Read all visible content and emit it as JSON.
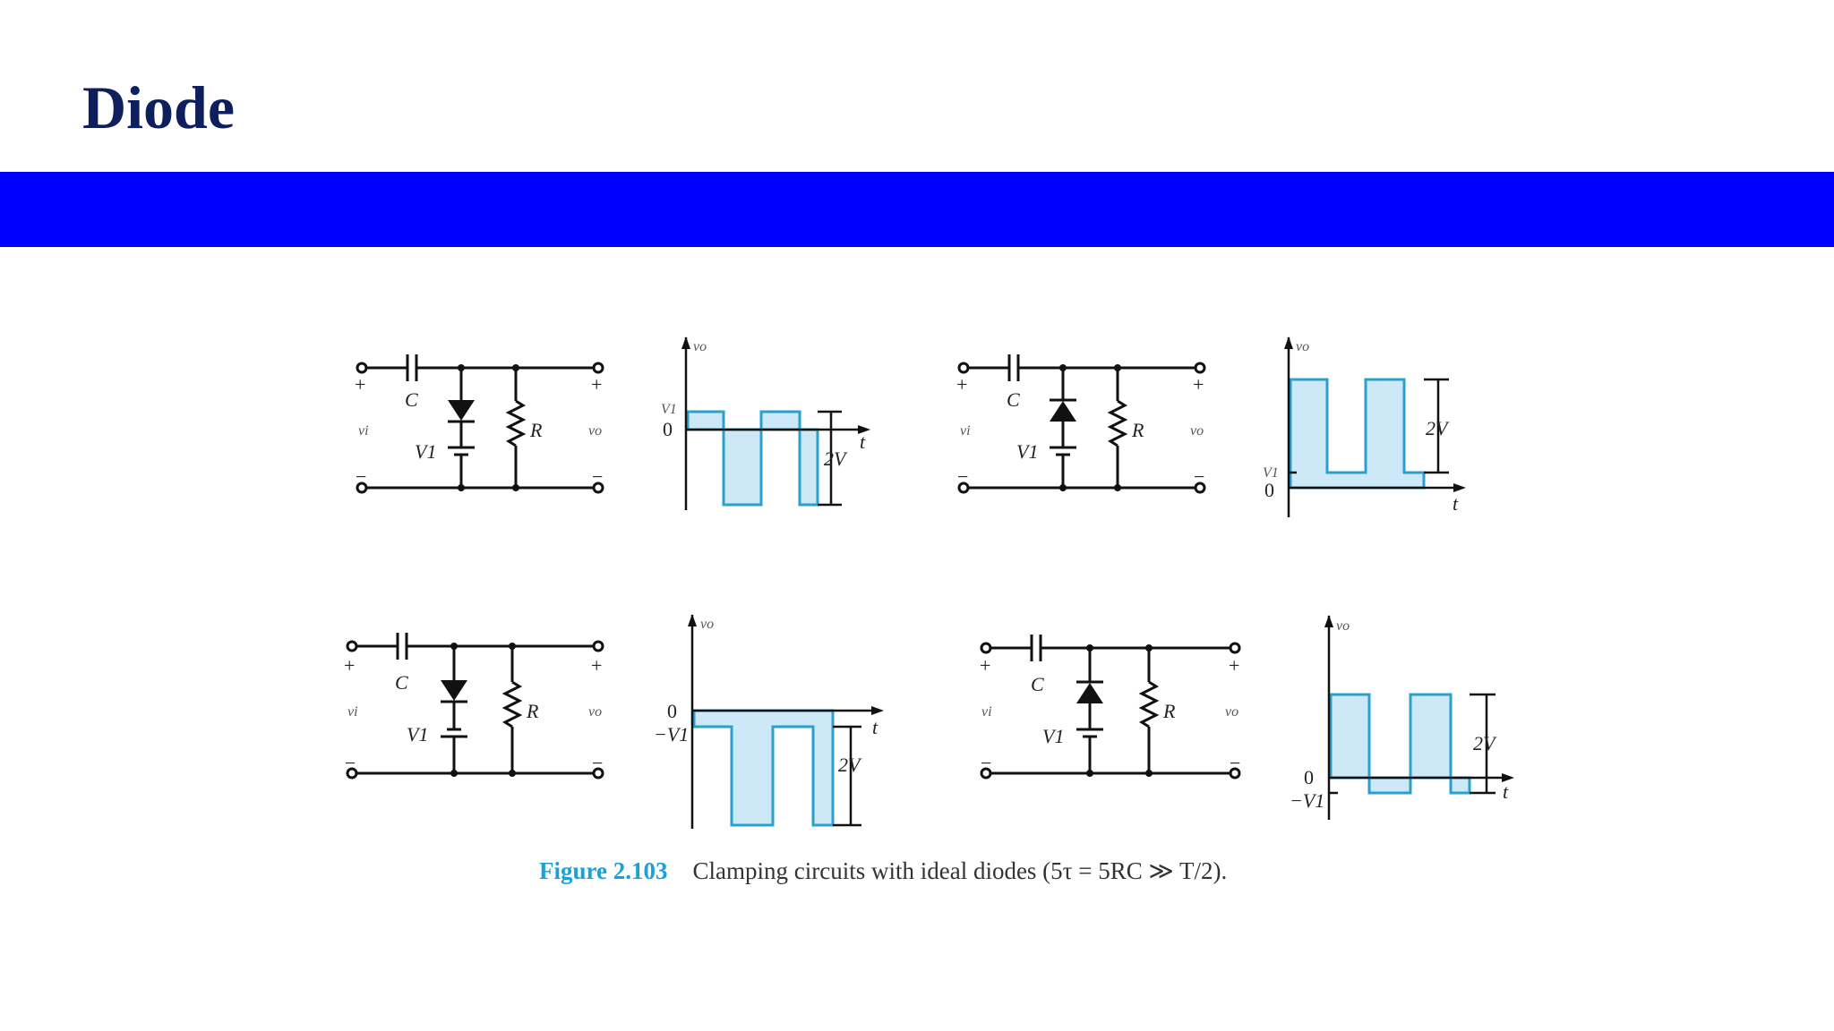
{
  "slide": {
    "title": "Diode"
  },
  "colors": {
    "title_text": "#0e1f5e",
    "title_bar": "#0000ff",
    "waveform_fill": "#cde8f7",
    "waveform_stroke": "#2aa0cf",
    "figure_number": "#1ba1d8"
  },
  "figure": {
    "caption_number": "Figure 2.103",
    "caption_text": "Clamping circuits with ideal diodes (5τ = 5RC ≫ T/2).",
    "labels": {
      "plus": "+",
      "minus": "−",
      "capacitor": "C",
      "resistor": "R",
      "input": "vi",
      "output": "vo",
      "battery": "V1",
      "axis_v": "vo",
      "axis_t": "t",
      "zero": "0",
      "v1": "V1",
      "neg_v1": "−V1",
      "swing": "2V"
    }
  }
}
